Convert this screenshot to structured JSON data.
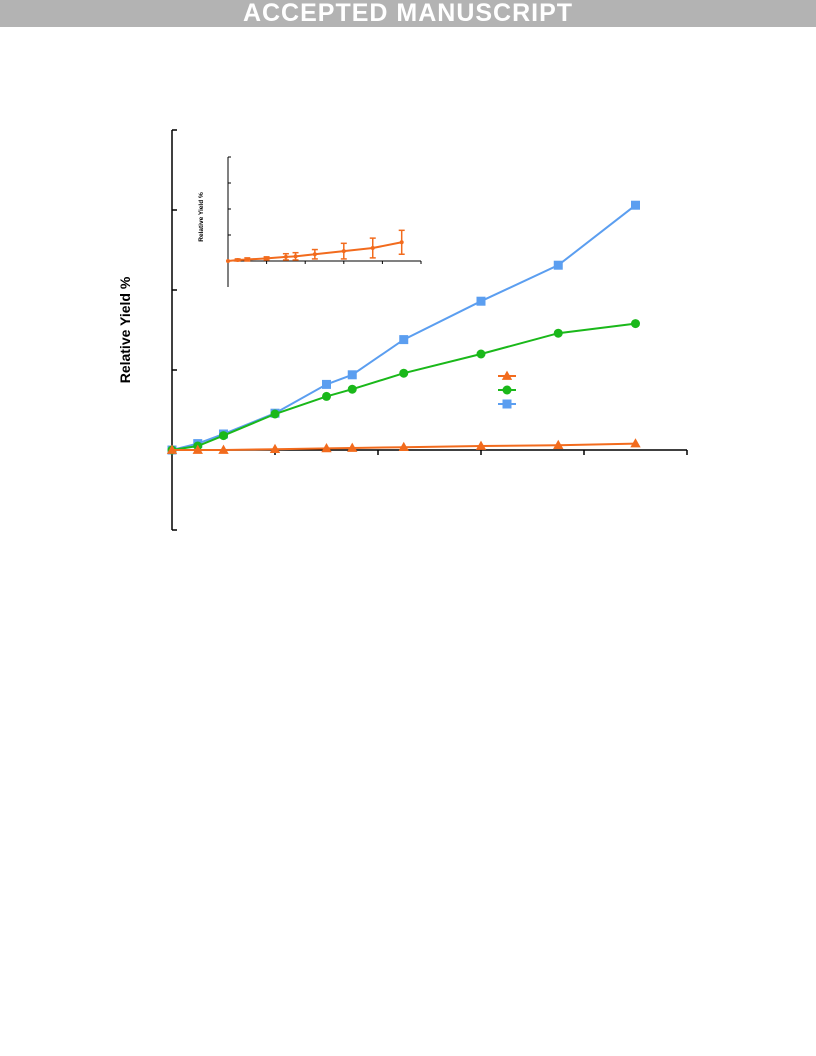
{
  "banner": {
    "text": "ACCEPTED MANUSCRIPT",
    "background": "#b3b3b3"
  },
  "chart_data": [
    {
      "type": "line",
      "ylabel": "Relative Yield %",
      "xlim": [
        0,
        50
      ],
      "ylim": [
        -1,
        4
      ],
      "grid": false,
      "legend_position": "center-right",
      "series": [
        {
          "marker": "triangle",
          "color": "#f26b1d",
          "x": [
            0,
            2.5,
            5,
            10,
            15,
            17.5,
            22.5,
            30,
            37.5,
            45
          ],
          "y": [
            0,
            0,
            0,
            0.01,
            0.02,
            0.025,
            0.035,
            0.05,
            0.06,
            0.08
          ]
        },
        {
          "marker": "circle",
          "color": "#1ab81a",
          "x": [
            0,
            2.5,
            5,
            10,
            15,
            17.5,
            22.5,
            30,
            37.5,
            45
          ],
          "y": [
            0,
            0.05,
            0.18,
            0.45,
            0.67,
            0.76,
            0.96,
            1.2,
            1.46,
            1.58
          ]
        },
        {
          "marker": "square",
          "color": "#5b9ef0",
          "x": [
            0,
            2.5,
            5,
            10,
            15,
            17.5,
            22.5,
            30,
            37.5,
            45
          ],
          "y": [
            0,
            0.08,
            0.2,
            0.46,
            0.82,
            0.94,
            1.38,
            1.86,
            2.31,
            3.06
          ]
        }
      ]
    },
    {
      "type": "line",
      "ylabel": "Relative Yield %",
      "xlim": [
        0,
        50
      ],
      "ylim": [
        0,
        0.1
      ],
      "grid": false,
      "series": [
        {
          "marker": "circle",
          "color": "#f26b1d",
          "x": [
            0,
            2.5,
            5,
            10,
            15,
            17.5,
            22.5,
            30,
            37.5,
            45
          ],
          "y": [
            0,
            0.001,
            0.0015,
            0.0025,
            0.004,
            0.0045,
            0.0065,
            0.0095,
            0.0125,
            0.018
          ],
          "error": [
            0,
            0.001,
            0.0015,
            0.0015,
            0.003,
            0.0035,
            0.0045,
            0.0075,
            0.0095,
            0.0115
          ]
        }
      ]
    }
  ]
}
